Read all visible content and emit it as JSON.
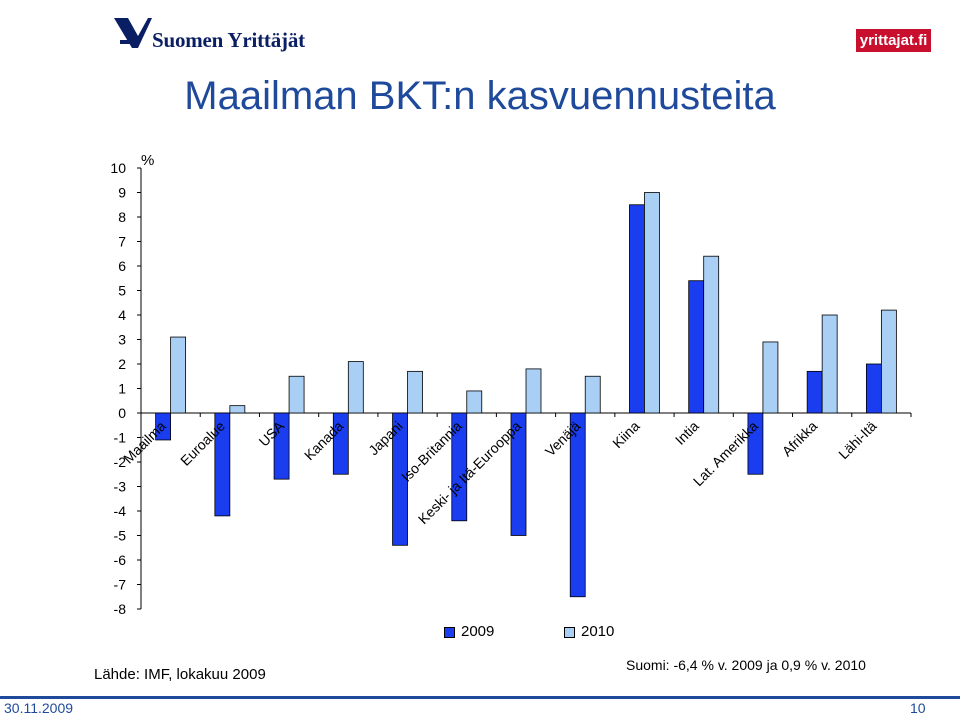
{
  "header": {
    "logo_text": "Suomen Yrittäjät",
    "site_badge": "yrittajat.fi"
  },
  "slide": {
    "title": "Maailman BKT:n kasvuennusteita",
    "source": "Lähde: IMF, lokakuu 2009",
    "note": "Suomi: -6,4 % v. 2009 ja 0,9 % v. 2010"
  },
  "footer": {
    "date": "30.11.2009",
    "page": "10"
  },
  "colors": {
    "series_2009": "#1a3df0",
    "series_2010": "#a9cff5",
    "title": "#1f4a9c",
    "badge": "#c8102e"
  },
  "chart_data": {
    "type": "bar",
    "ylabel": "%",
    "ylim": [
      -8,
      10
    ],
    "yticks": [
      10,
      9,
      8,
      7,
      6,
      5,
      4,
      3,
      2,
      1,
      0,
      -1,
      -2,
      -3,
      -4,
      -5,
      -6,
      -7,
      -8
    ],
    "grid": false,
    "legend": "bottom",
    "categories": [
      "Maailma",
      "Euroalue",
      "USA",
      "Kanada",
      "Japani",
      "Iso-Britannia",
      "Keski- ja Itä-Eurooppa",
      "Venäjä",
      "Kiina",
      "Intia",
      "Lat. Amerikka",
      "Afrikka",
      "Lähi-Itä"
    ],
    "series": [
      {
        "name": "2009",
        "values": [
          -1.1,
          -4.2,
          -2.7,
          -2.5,
          -5.4,
          -4.4,
          -5.0,
          -7.5,
          8.5,
          5.4,
          -2.5,
          1.7,
          2.0
        ]
      },
      {
        "name": "2010",
        "values": [
          3.1,
          0.3,
          1.5,
          2.1,
          1.7,
          0.9,
          1.8,
          1.5,
          9.0,
          6.4,
          2.9,
          4.0,
          4.2
        ]
      }
    ]
  }
}
